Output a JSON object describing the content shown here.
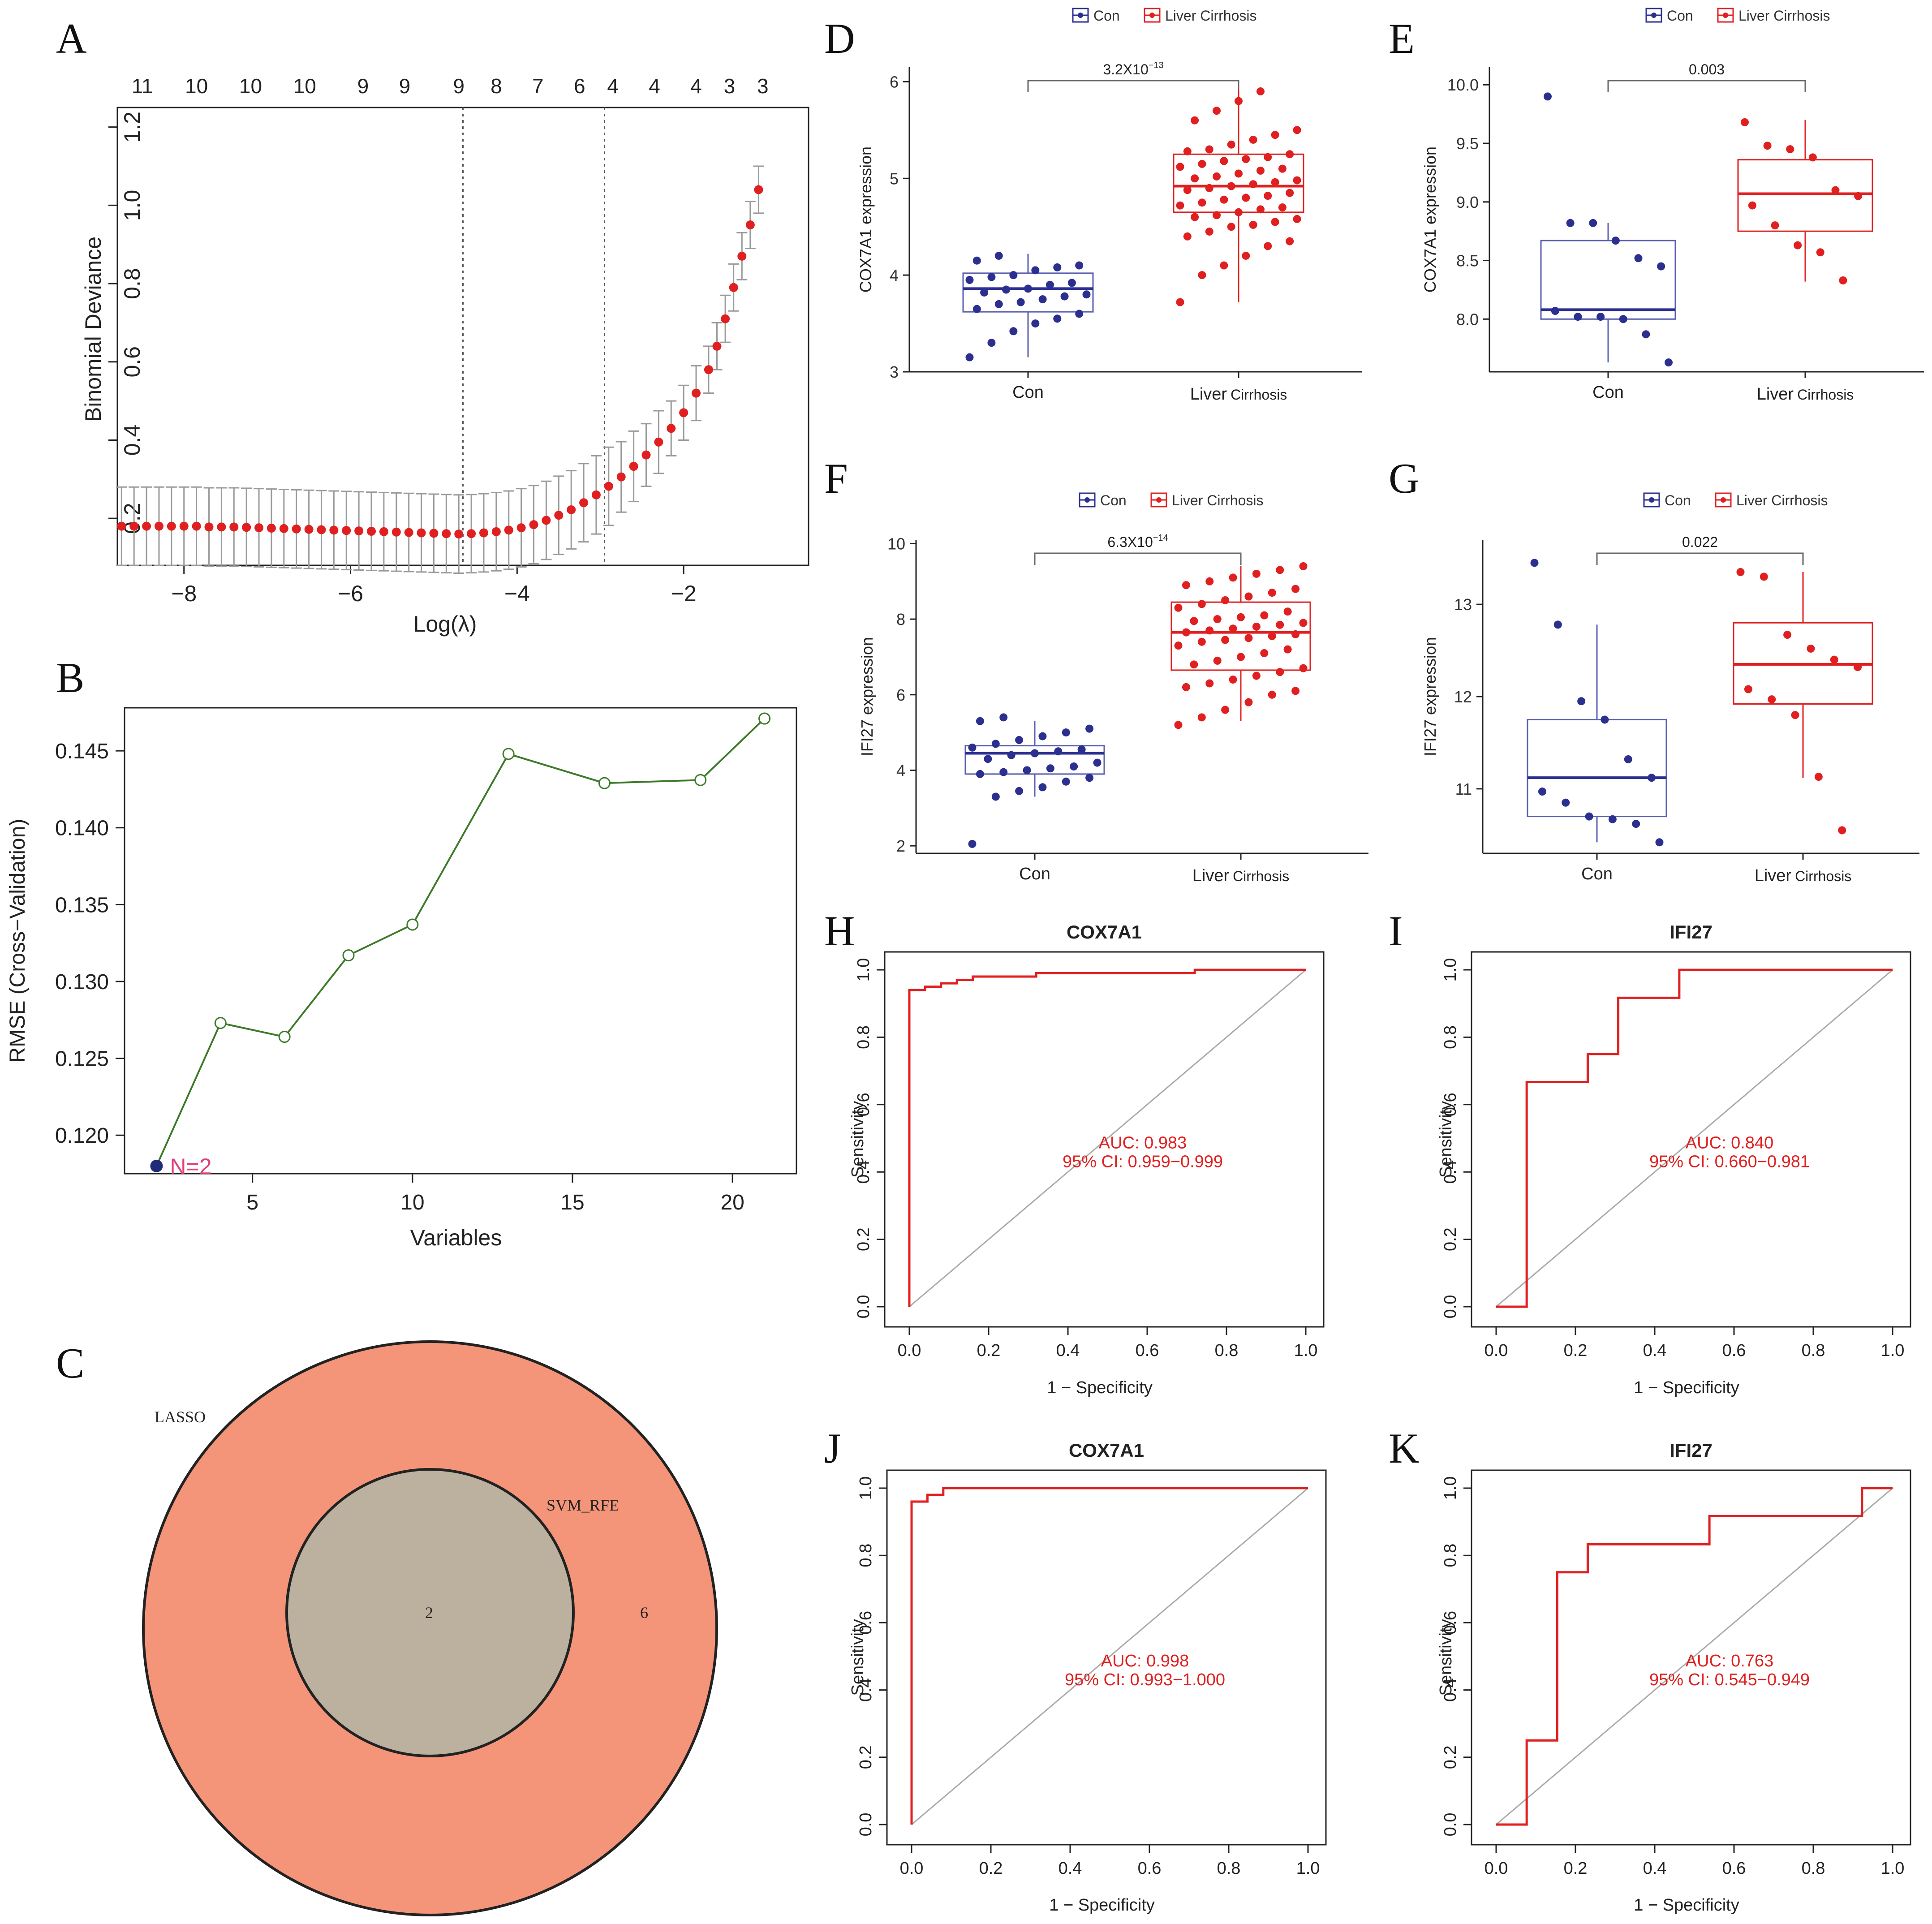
{
  "figure": {
    "panel_labels": [
      "A",
      "B",
      "C",
      "D",
      "E",
      "F",
      "G",
      "H",
      "I",
      "J",
      "K"
    ]
  },
  "chart_data": [
    {
      "panel": "A",
      "type": "line",
      "title": "",
      "xlabel": "Log(λ)",
      "ylabel": "Binomial Deviance",
      "xlim": [
        -8.8,
        -0.5
      ],
      "ylim": [
        0.08,
        1.25
      ],
      "xticks": [
        -8,
        -6,
        -4,
        -2
      ],
      "xtick_labels": [
        "−8",
        "−6",
        "−4",
        "−2"
      ],
      "yticks": [
        0.2,
        0.4,
        0.6,
        0.8,
        1.0,
        1.2
      ],
      "ytick_labels": [
        "0.2",
        "0.4",
        "0.6",
        "0.8",
        "1.0",
        "1.2"
      ],
      "top_axis_labels": [
        "11",
        "10",
        "10",
        "10",
        "9",
        "9",
        "9",
        "8",
        "7",
        "6",
        "4",
        "4",
        "4",
        "3",
        "3"
      ],
      "top_axis_x": [
        -8.5,
        -7.85,
        -7.2,
        -6.55,
        -5.85,
        -5.35,
        -4.7,
        -4.25,
        -3.75,
        -3.25,
        -2.85,
        -2.35,
        -1.85,
        -1.45,
        -1.05
      ],
      "vlines_x": [
        -4.65,
        -2.95
      ],
      "series": [
        {
          "name": "Binomial Deviance",
          "x": [
            -8.75,
            -8.6,
            -8.45,
            -8.3,
            -8.15,
            -8.0,
            -7.85,
            -7.7,
            -7.55,
            -7.4,
            -7.25,
            -7.1,
            -6.95,
            -6.8,
            -6.65,
            -6.5,
            -6.35,
            -6.2,
            -6.05,
            -5.9,
            -5.75,
            -5.6,
            -5.45,
            -5.3,
            -5.15,
            -5.0,
            -4.85,
            -4.7,
            -4.55,
            -4.4,
            -4.25,
            -4.1,
            -3.95,
            -3.8,
            -3.65,
            -3.5,
            -3.35,
            -3.2,
            -3.05,
            -2.9,
            -2.75,
            -2.6,
            -2.45,
            -2.3,
            -2.15,
            -2.0,
            -1.85,
            -1.7,
            -1.6,
            -1.5,
            -1.4,
            -1.3,
            -1.2,
            -1.1
          ],
          "y": [
            0.18,
            0.18,
            0.18,
            0.18,
            0.18,
            0.18,
            0.18,
            0.178,
            0.178,
            0.178,
            0.177,
            0.176,
            0.175,
            0.174,
            0.173,
            0.172,
            0.171,
            0.17,
            0.169,
            0.168,
            0.167,
            0.166,
            0.165,
            0.164,
            0.163,
            0.162,
            0.161,
            0.16,
            0.161,
            0.163,
            0.166,
            0.17,
            0.176,
            0.184,
            0.195,
            0.208,
            0.222,
            0.24,
            0.26,
            0.282,
            0.306,
            0.333,
            0.362,
            0.395,
            0.43,
            0.47,
            0.52,
            0.58,
            0.64,
            0.71,
            0.79,
            0.87,
            0.95,
            1.04
          ],
          "err": [
            0.1,
            0.1,
            0.1,
            0.1,
            0.1,
            0.1,
            0.1,
            0.1,
            0.1,
            0.1,
            0.1,
            0.1,
            0.1,
            0.1,
            0.1,
            0.1,
            0.1,
            0.1,
            0.1,
            0.1,
            0.1,
            0.1,
            0.1,
            0.1,
            0.1,
            0.1,
            0.1,
            0.1,
            0.1,
            0.1,
            0.1,
            0.1,
            0.1,
            0.1,
            0.1,
            0.1,
            0.1,
            0.1,
            0.1,
            0.1,
            0.09,
            0.09,
            0.08,
            0.08,
            0.07,
            0.07,
            0.07,
            0.06,
            0.06,
            0.06,
            0.06,
            0.06,
            0.06,
            0.06
          ]
        }
      ],
      "colors": {
        "points": "#e02020",
        "errorbars": "#9a9a9a"
      }
    },
    {
      "panel": "B",
      "type": "line",
      "title": "",
      "xlabel": "Variables",
      "ylabel": "RMSE (Cross−Validation)",
      "xlim": [
        1,
        22
      ],
      "ylim": [
        0.1175,
        0.1478
      ],
      "xticks": [
        5,
        10,
        15,
        20
      ],
      "xtick_labels": [
        "5",
        "10",
        "15",
        "20"
      ],
      "yticks": [
        0.12,
        0.125,
        0.13,
        0.135,
        0.14,
        0.145
      ],
      "ytick_labels": [
        "0.120",
        "0.125",
        "0.130",
        "0.135",
        "0.140",
        "0.145"
      ],
      "series": [
        {
          "name": "RMSE",
          "x": [
            2,
            4,
            6,
            8,
            10,
            13,
            16,
            19,
            21
          ],
          "y": [
            0.118,
            0.1273,
            0.1264,
            0.1317,
            0.1337,
            0.1448,
            0.1429,
            0.1431,
            0.1471
          ]
        }
      ],
      "highlight": {
        "x": 2,
        "y": 0.118,
        "label": "N=2"
      },
      "colors": {
        "line": "#3d7a2a",
        "highlight": "#1f2a7a",
        "highlight_label": "#e0407a"
      }
    },
    {
      "panel": "C",
      "type": "venn",
      "sets": [
        {
          "name": "LASSO",
          "only_count": "6"
        },
        {
          "name": "SVM_RFE",
          "only_count": ""
        }
      ],
      "intersection_count": "2",
      "colors": {
        "outer": "#f4957a",
        "inner": "#bcb09e"
      }
    },
    {
      "panel": "D",
      "type": "box",
      "ylabel": "COX7A1 expression",
      "categories": [
        "Con",
        "Liver Cirrhosis"
      ],
      "category_labels_main": [
        "Con",
        "Liver"
      ],
      "category_labels_sub": [
        "",
        "Cirrhosis"
      ],
      "legend": [
        "Con",
        "Liver Cirrhosis"
      ],
      "pvalue": {
        "base": "3.2X10",
        "exp": "−13"
      },
      "ylim": [
        3,
        6.15
      ],
      "yticks": [
        3,
        4,
        5,
        6
      ],
      "ytick_labels": [
        "3",
        "4",
        "5",
        "6"
      ],
      "boxes": [
        {
          "min": 3.15,
          "q1": 3.62,
          "median": 3.86,
          "q3": 4.02,
          "max": 4.22
        },
        {
          "min": 3.72,
          "q1": 4.65,
          "median": 4.92,
          "q3": 5.25,
          "max": 5.92
        }
      ],
      "points": [
        [
          3.15,
          3.3,
          3.42,
          3.5,
          3.55,
          3.6,
          3.65,
          3.7,
          3.72,
          3.75,
          3.78,
          3.8,
          3.82,
          3.85,
          3.86,
          3.9,
          3.92,
          3.95,
          3.98,
          4.0,
          4.05,
          4.08,
          4.1,
          4.15,
          4.2
        ],
        [
          3.72,
          4.0,
          4.1,
          4.2,
          4.3,
          4.35,
          4.4,
          4.45,
          4.5,
          4.52,
          4.55,
          4.58,
          4.6,
          4.62,
          4.65,
          4.68,
          4.7,
          4.72,
          4.75,
          4.78,
          4.8,
          4.82,
          4.85,
          4.88,
          4.9,
          4.92,
          4.94,
          4.96,
          4.98,
          5.0,
          5.02,
          5.05,
          5.08,
          5.1,
          5.12,
          5.15,
          5.18,
          5.2,
          5.22,
          5.25,
          5.28,
          5.3,
          5.35,
          5.4,
          5.45,
          5.5,
          5.6,
          5.7,
          5.8,
          5.9
        ]
      ],
      "colors": {
        "con": "#2b2f8f",
        "lc": "#e02020",
        "con_box": "#5a5fb0"
      }
    },
    {
      "panel": "E",
      "type": "box",
      "ylabel": "COX7A1 expression",
      "categories": [
        "Con",
        "Liver Cirrhosis"
      ],
      "category_labels_main": [
        "Con",
        "Liver"
      ],
      "category_labels_sub": [
        "",
        "Cirrhosis"
      ],
      "legend": [
        "Con",
        "Liver Cirrhosis"
      ],
      "pvalue": {
        "base": "0.003",
        "exp": ""
      },
      "ylim": [
        7.55,
        10.15
      ],
      "yticks": [
        8.0,
        8.5,
        9.0,
        9.5,
        10.0
      ],
      "ytick_labels": [
        "8.0",
        "8.5",
        "9.0",
        "9.5",
        "10.0"
      ],
      "boxes": [
        {
          "min": 7.63,
          "q1": 8.0,
          "median": 8.08,
          "q3": 8.67,
          "max": 8.82
        },
        {
          "min": 8.32,
          "q1": 8.75,
          "median": 9.07,
          "q3": 9.36,
          "max": 9.7
        }
      ],
      "points": [
        [
          9.9,
          8.82,
          8.82,
          8.67,
          8.52,
          8.45,
          8.07,
          8.02,
          8.02,
          8.0,
          7.87,
          7.63
        ],
        [
          9.68,
          9.48,
          9.45,
          9.38,
          9.1,
          9.05,
          8.97,
          8.8,
          8.63,
          8.57,
          8.33
        ]
      ],
      "colors": {
        "con": "#2b2f8f",
        "lc": "#e02020",
        "con_box": "#5a5fb0"
      }
    },
    {
      "panel": "F",
      "type": "box",
      "ylabel": "IFI27 expression",
      "categories": [
        "Con",
        "Liver Cirrhosis"
      ],
      "category_labels_main": [
        "Con",
        "Liver"
      ],
      "category_labels_sub": [
        "",
        "Cirrhosis"
      ],
      "legend": [
        "Con",
        "Liver Cirrhosis"
      ],
      "pvalue": {
        "base": "6.3X10",
        "exp": "−14"
      },
      "ylim": [
        1.8,
        10.1
      ],
      "yticks": [
        2,
        4,
        6,
        8,
        10
      ],
      "ytick_labels": [
        "2",
        "4",
        "6",
        "8",
        "10"
      ],
      "boxes": [
        {
          "min": 3.3,
          "q1": 3.9,
          "median": 4.45,
          "q3": 4.65,
          "max": 5.3
        },
        {
          "min": 5.3,
          "q1": 6.65,
          "median": 7.65,
          "q3": 8.45,
          "max": 9.4
        }
      ],
      "points": [
        [
          2.05,
          3.3,
          3.45,
          3.55,
          3.7,
          3.8,
          3.9,
          3.95,
          4.0,
          4.05,
          4.1,
          4.2,
          4.3,
          4.4,
          4.45,
          4.5,
          4.55,
          4.6,
          4.7,
          4.8,
          4.9,
          5.0,
          5.1,
          5.3,
          5.4
        ],
        [
          5.2,
          5.4,
          5.6,
          5.8,
          6.0,
          6.1,
          6.2,
          6.3,
          6.4,
          6.5,
          6.6,
          6.7,
          6.8,
          6.9,
          7.0,
          7.1,
          7.2,
          7.3,
          7.4,
          7.45,
          7.5,
          7.55,
          7.6,
          7.65,
          7.7,
          7.75,
          7.8,
          7.85,
          7.9,
          7.95,
          8.0,
          8.05,
          8.1,
          8.2,
          8.3,
          8.4,
          8.5,
          8.6,
          8.7,
          8.8,
          8.9,
          9.0,
          9.1,
          9.2,
          9.3,
          9.4
        ]
      ],
      "colors": {
        "con": "#2b2f8f",
        "lc": "#e02020",
        "con_box": "#5a5fb0"
      }
    },
    {
      "panel": "G",
      "type": "box",
      "ylabel": "IFI27 expression",
      "categories": [
        "Con",
        "Liver Cirrhosis"
      ],
      "category_labels_main": [
        "Con",
        "Liver"
      ],
      "category_labels_sub": [
        "",
        "Cirrhosis"
      ],
      "legend": [
        "Con",
        "Liver Cirrhosis"
      ],
      "pvalue": {
        "base": "0.022",
        "exp": ""
      },
      "ylim": [
        10.3,
        13.7
      ],
      "yticks": [
        11,
        12,
        13
      ],
      "ytick_labels": [
        "11",
        "12",
        "13"
      ],
      "boxes": [
        {
          "min": 10.42,
          "q1": 10.7,
          "median": 11.12,
          "q3": 11.75,
          "max": 12.78
        },
        {
          "min": 11.12,
          "q1": 11.92,
          "median": 12.35,
          "q3": 12.8,
          "max": 13.35
        }
      ],
      "points": [
        [
          13.45,
          12.78,
          11.95,
          11.75,
          11.32,
          11.12,
          10.97,
          10.85,
          10.7,
          10.67,
          10.62,
          10.42
        ],
        [
          13.35,
          13.3,
          12.67,
          12.52,
          12.4,
          12.32,
          12.08,
          11.97,
          11.8,
          11.13,
          10.55
        ]
      ],
      "colors": {
        "con": "#2b2f8f",
        "lc": "#e02020",
        "con_box": "#5a5fb0"
      }
    },
    {
      "panel": "H",
      "type": "line",
      "title": "COX7A1",
      "xlabel": "1 − Specificity",
      "ylabel": "Sensitivity",
      "xticks": [
        0,
        0.2,
        0.4,
        0.6,
        0.8,
        1.0
      ],
      "xtick_labels": [
        "0.0",
        "0.2",
        "0.4",
        "0.6",
        "0.8",
        "1.0"
      ],
      "yticks": [
        0,
        0.2,
        0.4,
        0.6,
        0.8,
        1.0
      ],
      "ytick_labels": [
        "0.0",
        "0.2",
        "0.4",
        "0.6",
        "0.8",
        "1.0"
      ],
      "auc_text": "AUC: 0.983",
      "ci_text": "95% CI: 0.959−0.999",
      "roc": {
        "x": [
          0,
          0,
          0.04,
          0.04,
          0.08,
          0.08,
          0.12,
          0.12,
          0.16,
          0.16,
          0.32,
          0.32,
          0.72,
          0.72,
          1.0
        ],
        "y": [
          0,
          0.94,
          0.94,
          0.95,
          0.95,
          0.96,
          0.96,
          0.97,
          0.97,
          0.98,
          0.98,
          0.99,
          0.99,
          1.0,
          1.0
        ]
      }
    },
    {
      "panel": "I",
      "type": "line",
      "title": "IFI27",
      "xlabel": "1 − Specificity",
      "ylabel": "Sensitivity",
      "xticks": [
        0,
        0.2,
        0.4,
        0.6,
        0.8,
        1.0
      ],
      "xtick_labels": [
        "0.0",
        "0.2",
        "0.4",
        "0.6",
        "0.8",
        "1.0"
      ],
      "yticks": [
        0,
        0.2,
        0.4,
        0.6,
        0.8,
        1.0
      ],
      "ytick_labels": [
        "0.0",
        "0.2",
        "0.4",
        "0.6",
        "0.8",
        "1.0"
      ],
      "auc_text": "AUC: 0.840",
      "ci_text": "95% CI: 0.660−0.981",
      "roc": {
        "x": [
          0,
          0.077,
          0.077,
          0.231,
          0.231,
          0.308,
          0.308,
          0.462,
          0.462,
          1.0
        ],
        "y": [
          0,
          0,
          0.667,
          0.667,
          0.75,
          0.75,
          0.917,
          0.917,
          1.0,
          1.0
        ]
      }
    },
    {
      "panel": "J",
      "type": "line",
      "title": "COX7A1",
      "xlabel": "1 − Specificity",
      "ylabel": "Sensitivity",
      "xticks": [
        0,
        0.2,
        0.4,
        0.6,
        0.8,
        1.0
      ],
      "xtick_labels": [
        "0.0",
        "0.2",
        "0.4",
        "0.6",
        "0.8",
        "1.0"
      ],
      "yticks": [
        0,
        0.2,
        0.4,
        0.6,
        0.8,
        1.0
      ],
      "ytick_labels": [
        "0.0",
        "0.2",
        "0.4",
        "0.6",
        "0.8",
        "1.0"
      ],
      "auc_text": "AUC: 0.998",
      "ci_text": "95% CI: 0.993−1.000",
      "roc": {
        "x": [
          0,
          0,
          0.04,
          0.04,
          0.08,
          0.08,
          1.0
        ],
        "y": [
          0,
          0.96,
          0.96,
          0.98,
          0.98,
          1.0,
          1.0
        ]
      }
    },
    {
      "panel": "K",
      "type": "line",
      "title": "IFI27",
      "xlabel": "1 − Specificity",
      "ylabel": "Sensitivity",
      "xticks": [
        0,
        0.2,
        0.4,
        0.6,
        0.8,
        1.0
      ],
      "xtick_labels": [
        "0.0",
        "0.2",
        "0.4",
        "0.6",
        "0.8",
        "1.0"
      ],
      "yticks": [
        0,
        0.2,
        0.4,
        0.6,
        0.8,
        1.0
      ],
      "ytick_labels": [
        "0.0",
        "0.2",
        "0.4",
        "0.6",
        "0.8",
        "1.0"
      ],
      "auc_text": "AUC: 0.763",
      "ci_text": "95% CI: 0.545−0.949",
      "roc": {
        "x": [
          0,
          0.077,
          0.077,
          0.154,
          0.154,
          0.231,
          0.231,
          0.538,
          0.538,
          0.923,
          0.923,
          1.0
        ],
        "y": [
          0,
          0,
          0.25,
          0.25,
          0.75,
          0.75,
          0.833,
          0.833,
          0.917,
          0.917,
          1.0,
          1.0
        ]
      }
    }
  ]
}
